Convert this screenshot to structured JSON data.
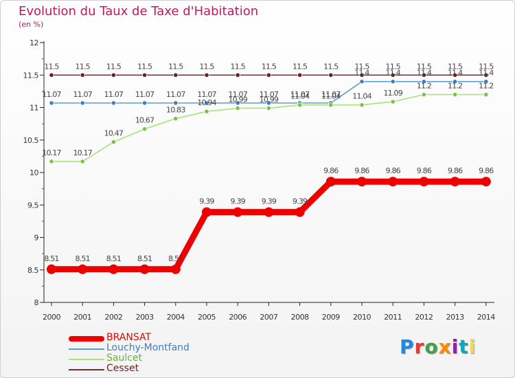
{
  "title": "Evolution du Taux de Taxe d'Habitation",
  "subtitle": "(en %)",
  "logo": {
    "text": "Proxiti",
    "colors": [
      "#1e88e5",
      "#e53935",
      "#43a047",
      "#fb8c00",
      "#8e24aa",
      "#00acc1",
      "#fdd835"
    ]
  },
  "chart_data": {
    "type": "line",
    "title": "Evolution du Taux de Taxe d'Habitation",
    "ylabel": "(en %)",
    "xlabel": "",
    "categories": [
      "2000",
      "2001",
      "2002",
      "2003",
      "2004",
      "2005",
      "2006",
      "2007",
      "2008",
      "2009",
      "2010",
      "2011",
      "2012",
      "2013",
      "2014"
    ],
    "ylim": [
      8,
      12
    ],
    "yticks": [
      "8",
      "8.5",
      "9",
      "9.5",
      "10",
      "10.5",
      "11",
      "11.5",
      "12"
    ],
    "grid": false,
    "legend_position": "bottom-left",
    "series": [
      {
        "name": "Cesset",
        "color": "#7a2a2a",
        "marker": "#6b1f1f",
        "values": [
          11.5,
          11.5,
          11.5,
          11.5,
          11.5,
          11.5,
          11.5,
          11.5,
          11.5,
          11.5,
          11.5,
          11.5,
          11.5,
          11.5,
          11.5
        ],
        "labels": [
          "11.5",
          "11.5",
          "11.5",
          "11.5",
          "11.5",
          "11.5",
          "11.5",
          "11.5",
          "11.5",
          "11.5",
          "11.5",
          "11.5",
          "11.5",
          "11.5",
          "11.5"
        ]
      },
      {
        "name": "Louchy-Montfand",
        "color": "#5b9bd5",
        "marker": "#3e7fbf",
        "values": [
          11.07,
          11.07,
          11.07,
          11.07,
          11.07,
          11.07,
          11.07,
          11.07,
          11.07,
          11.07,
          11.4,
          11.4,
          11.4,
          11.4,
          11.4
        ],
        "labels": [
          "11.07",
          "11.07",
          "11.07",
          "11.07",
          "11.07",
          "11.07",
          "11.07",
          "11.07",
          "11.07",
          "11.07",
          "11.4",
          "11.4",
          "11.4",
          "11.4",
          "11.4"
        ]
      },
      {
        "name": "Saulcet",
        "color": "#a8e07a",
        "marker": "#7cc24a",
        "values": [
          10.17,
          10.17,
          10.47,
          10.67,
          10.83,
          10.94,
          10.99,
          10.99,
          11.04,
          11.04,
          11.04,
          11.09,
          11.2,
          11.2,
          11.2
        ],
        "labels": [
          "10.17",
          "10.17",
          "10.47",
          "10.67",
          "10.83",
          "10.94",
          "10.99",
          "10.99",
          "11.04",
          "11.04",
          "11.04",
          "11.09",
          "11.2",
          "11.2",
          "11.2"
        ]
      },
      {
        "name": "BRANSAT",
        "color": "#ee0000",
        "marker": "#ee0000",
        "values": [
          8.51,
          8.51,
          8.51,
          8.51,
          8.51,
          9.39,
          9.39,
          9.39,
          9.39,
          9.86,
          9.86,
          9.86,
          9.86,
          9.86,
          9.86
        ],
        "labels": [
          "8.51",
          "8.51",
          "8.51",
          "8.51",
          "8.51",
          "9.39",
          "9.39",
          "9.39",
          "9.39",
          "9.86",
          "9.86",
          "9.86",
          "9.86",
          "9.86",
          "9.86"
        ]
      }
    ],
    "legend": [
      {
        "name": "BRANSAT",
        "color": "#ee0000",
        "text_color": "#ee0000"
      },
      {
        "name": "Louchy-Montfand",
        "color": "#5b9bd5",
        "text_color": "#3e7fbf"
      },
      {
        "name": "Saulcet",
        "color": "#a8e07a",
        "text_color": "#6fae3e"
      },
      {
        "name": "Cesset",
        "color": "#7a2a2a",
        "text_color": "#6b1f1f"
      }
    ]
  }
}
